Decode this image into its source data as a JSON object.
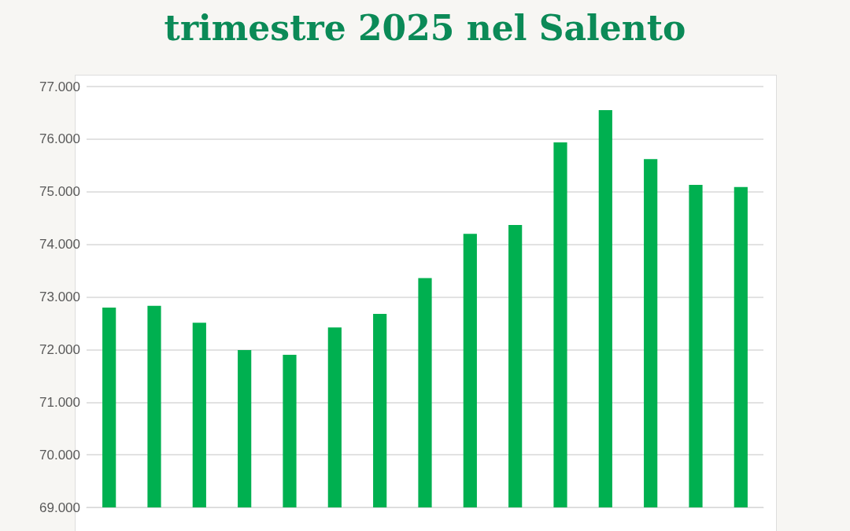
{
  "chart_data": {
    "type": "bar",
    "title": "trimestre 2025 nel Salento",
    "categories": [
      null,
      null,
      null,
      null,
      null,
      null,
      null,
      null,
      null,
      null,
      null,
      null,
      null,
      null,
      null
    ],
    "values": [
      72800,
      72830,
      72510,
      71990,
      71900,
      72420,
      72680,
      73360,
      74200,
      74370,
      75940,
      76550,
      75620,
      75130,
      75090
    ],
    "color": "#00b050",
    "ylim": [
      69000,
      77000
    ],
    "yticks": [
      {
        "value": 69000,
        "label": "69.000"
      },
      {
        "value": 70000,
        "label": "70.000"
      },
      {
        "value": 71000,
        "label": "71.000"
      },
      {
        "value": 72000,
        "label": "72.000"
      },
      {
        "value": 73000,
        "label": "73.000"
      },
      {
        "value": 74000,
        "label": "74.000"
      },
      {
        "value": 75000,
        "label": "75.000"
      },
      {
        "value": 76000,
        "label": "76.000"
      },
      {
        "value": 77000,
        "label": "77.000"
      }
    ],
    "grid": "y"
  }
}
